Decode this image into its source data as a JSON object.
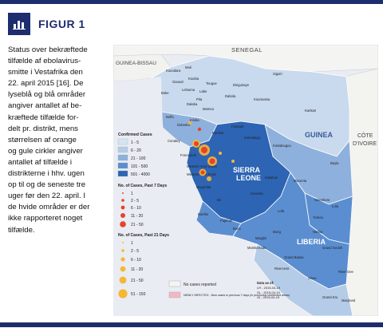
{
  "figure": {
    "title": "FIGUR 1",
    "icon": "bar-chart-icon",
    "accent_color": "#1d2d6e",
    "caption": [
      "Status over bekræftede",
      "tilfælde af ebolavirus-",
      "smitte i Vestafrika den",
      "22. april 2015 [16]. De",
      "lyseblå og blå områder",
      "angiver antallet af be-",
      "kræftede tilfælde for-",
      "delt pr. distrikt, mens",
      "størrelsen af orange",
      "og gule cirkler angiver",
      "antallet af tilfælde i",
      "distrikterne i hhv. ugen",
      "op til og de seneste tre",
      "uger før den 22. april. I",
      "de hvide områder er der",
      "ikke rapporteret noget",
      "tilfælde."
    ]
  },
  "map": {
    "countries": [
      "SENEGAL",
      "GUINEA-BISSAU",
      "SIERRA",
      "LEONE",
      "GUINEA",
      "LIBERIA",
      "CÔTE",
      "D'IVOIRE"
    ],
    "districts": [
      {
        "name": "Koundara"
      },
      {
        "name": "Mali"
      },
      {
        "name": "Gaoual"
      },
      {
        "name": "Koubia"
      },
      {
        "name": "Siguiri"
      },
      {
        "name": "Tougue"
      },
      {
        "name": "Dinguiraye"
      },
      {
        "name": "Lelouma"
      },
      {
        "name": "Labe"
      },
      {
        "name": "Pita"
      },
      {
        "name": "Dabola"
      },
      {
        "name": "Boke"
      },
      {
        "name": "Dalaba"
      },
      {
        "name": "Kouroussa"
      },
      {
        "name": "Mamou"
      },
      {
        "name": "Boffa"
      },
      {
        "name": "Kindia"
      },
      {
        "name": "Kankan"
      },
      {
        "name": "Faranah"
      },
      {
        "name": "Dubreka"
      },
      {
        "name": "Forecariah"
      },
      {
        "name": "Kissidougou"
      },
      {
        "name": "Beyla"
      },
      {
        "name": "Kailahun"
      },
      {
        "name": "Koinadugu"
      },
      {
        "name": "Kenema"
      },
      {
        "name": "Macenta"
      },
      {
        "name": "Lola"
      },
      {
        "name": "Nzerekore"
      },
      {
        "name": "Yomou"
      },
      {
        "name": "Lofa"
      },
      {
        "name": "Bomi"
      },
      {
        "name": "Bong"
      },
      {
        "name": "Nimba"
      },
      {
        "name": "Margibi"
      },
      {
        "name": "Grand Bassa"
      },
      {
        "name": "Rivercess"
      },
      {
        "name": "Sinoe"
      },
      {
        "name": "Grand Gedeh"
      },
      {
        "name": "River Gee"
      },
      {
        "name": "Maryland"
      },
      {
        "name": "Grand Kru"
      },
      {
        "name": "Bo"
      },
      {
        "name": "Bonthe"
      },
      {
        "name": "Pujehun"
      },
      {
        "name": "Moyamba"
      },
      {
        "name": "Kambia"
      },
      {
        "name": "Conakry"
      },
      {
        "name": "Western Area Urban"
      },
      {
        "name": "Western Area Rural"
      },
      {
        "name": "Montserrado"
      }
    ],
    "legend": {
      "confirmed_title": "Confirmed Cases",
      "confirmed": [
        {
          "label": "1 - 5",
          "color": "#d6e4f2"
        },
        {
          "label": "6 - 20",
          "color": "#b5cce8"
        },
        {
          "label": "21 - 100",
          "color": "#8eb0dc"
        },
        {
          "label": "101 - 500",
          "color": "#5a8ed0"
        },
        {
          "label": "501 - 4000",
          "color": "#2d64b4"
        }
      ],
      "past7_title": "No. of Cases, Past 7 Days",
      "past7": [
        "1",
        "2 - 5",
        "6 - 10",
        "11 - 20",
        "21 - 50"
      ],
      "past21_title": "No. of Cases, Past 21 Days",
      "past21": [
        "1",
        "2 - 5",
        "6 - 10",
        "11 - 20",
        "21 - 50",
        "51 - 150"
      ],
      "no_cases": "No cases reported",
      "newly_infected": "NEWLY INFECTED - New cases in previous 7 days (in previously uninfected areas)",
      "data_title": "Data as of:",
      "data_dates": [
        "LR - 2015-04-19",
        "SL - 2015-04-19",
        "GI - 2015-04-19"
      ]
    }
  }
}
